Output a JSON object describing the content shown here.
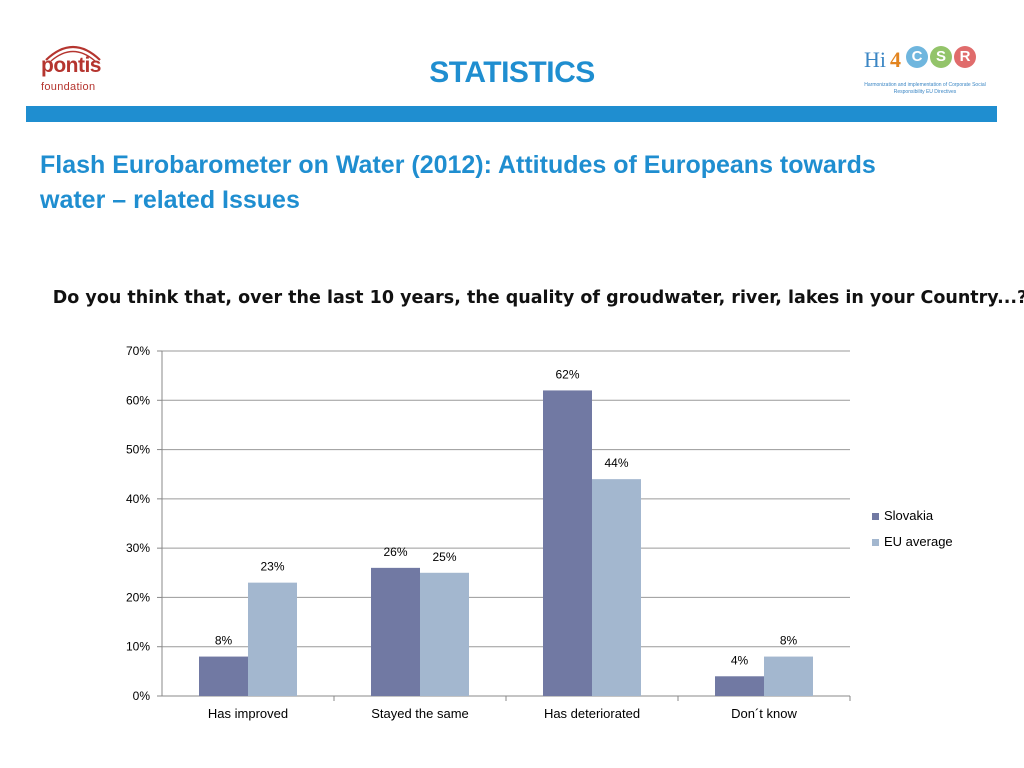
{
  "header": {
    "title": "STATISTICS",
    "left_logo": {
      "brand": "pontis",
      "sub": "foundation",
      "color": "#b5352f"
    },
    "right_logo": {
      "hi": "Hi",
      "four": "4",
      "letters": [
        "C",
        "S",
        "R"
      ],
      "tagline": "Harmonization and implementation of Corporate Social Responsibility EU Directives"
    },
    "bar_color": "#1f8ed0"
  },
  "slide": {
    "title": "Flash Eurobarometer on Water (2012): Attitudes of Europeans towards water – related Issues"
  },
  "chart_data": {
    "type": "bar",
    "title": "Do you think that, over the last 10 years, the quality of groudwater, river, lakes in your Country...?",
    "categories": [
      "Has improved",
      "Stayed the same",
      "Has deteriorated",
      "Don´t know"
    ],
    "series": [
      {
        "name": "Slovakia",
        "values": [
          8,
          26,
          62,
          4
        ],
        "labels": [
          "8%",
          "26%",
          "62%",
          "4%"
        ],
        "color": "#7179a3"
      },
      {
        "name": "EU average",
        "values": [
          23,
          25,
          44,
          8
        ],
        "labels": [
          "23%",
          "25%",
          "44%",
          "8%"
        ],
        "color": "#a3b7cf"
      }
    ],
    "ylim": [
      0,
      70
    ],
    "yticks": [
      0,
      10,
      20,
      30,
      40,
      50,
      60,
      70
    ],
    "ytick_labels": [
      "0%",
      "10%",
      "20%",
      "30%",
      "40%",
      "50%",
      "60%",
      "70%"
    ],
    "grid": true,
    "legend": "right",
    "xlabel": "",
    "ylabel": ""
  }
}
